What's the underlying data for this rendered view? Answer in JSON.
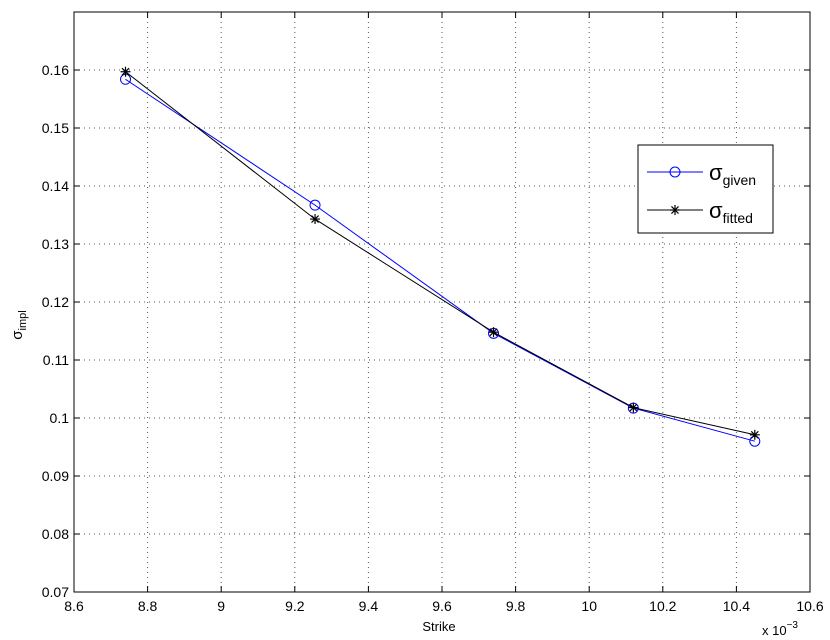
{
  "chart_data": {
    "type": "line",
    "xlabel": "Strike",
    "ylabel": {
      "main": "σ",
      "sub": "impl"
    },
    "x_multiplier": {
      "base": "x 10",
      "exp": "−3"
    },
    "xlim": [
      8.6,
      10.6
    ],
    "ylim": [
      0.07,
      0.17
    ],
    "xticks": [
      8.6,
      8.8,
      9.0,
      9.2,
      9.4,
      9.6,
      9.8,
      10.0,
      10.2,
      10.4,
      10.6
    ],
    "xtick_labels": [
      "8.6",
      "8.8",
      "9",
      "9.2",
      "9.4",
      "9.6",
      "9.8",
      "10",
      "10.2",
      "10.4",
      "10.6"
    ],
    "yticks": [
      0.07,
      0.08,
      0.09,
      0.1,
      0.11,
      0.12,
      0.13,
      0.14,
      0.15,
      0.16
    ],
    "ytick_labels": [
      "0.07",
      "0.08",
      "0.09",
      "0.1",
      "0.11",
      "0.12",
      "0.13",
      "0.14",
      "0.15",
      "0.16"
    ],
    "grid": true,
    "legend_position": "right",
    "series": [
      {
        "name": "σ",
        "name_sub": "given",
        "color": "#0000ff",
        "marker": "circle",
        "x": [
          8.74,
          9.255,
          9.74,
          10.12,
          10.45
        ],
        "y": [
          0.1584,
          0.1367,
          0.1146,
          0.1017,
          0.096
        ]
      },
      {
        "name": "σ",
        "name_sub": "fitted",
        "color": "#000000",
        "marker": "asterisk",
        "x": [
          8.74,
          9.255,
          9.74,
          10.12,
          10.45
        ],
        "y": [
          0.1597,
          0.1343,
          0.1148,
          0.1018,
          0.0971
        ]
      }
    ]
  }
}
